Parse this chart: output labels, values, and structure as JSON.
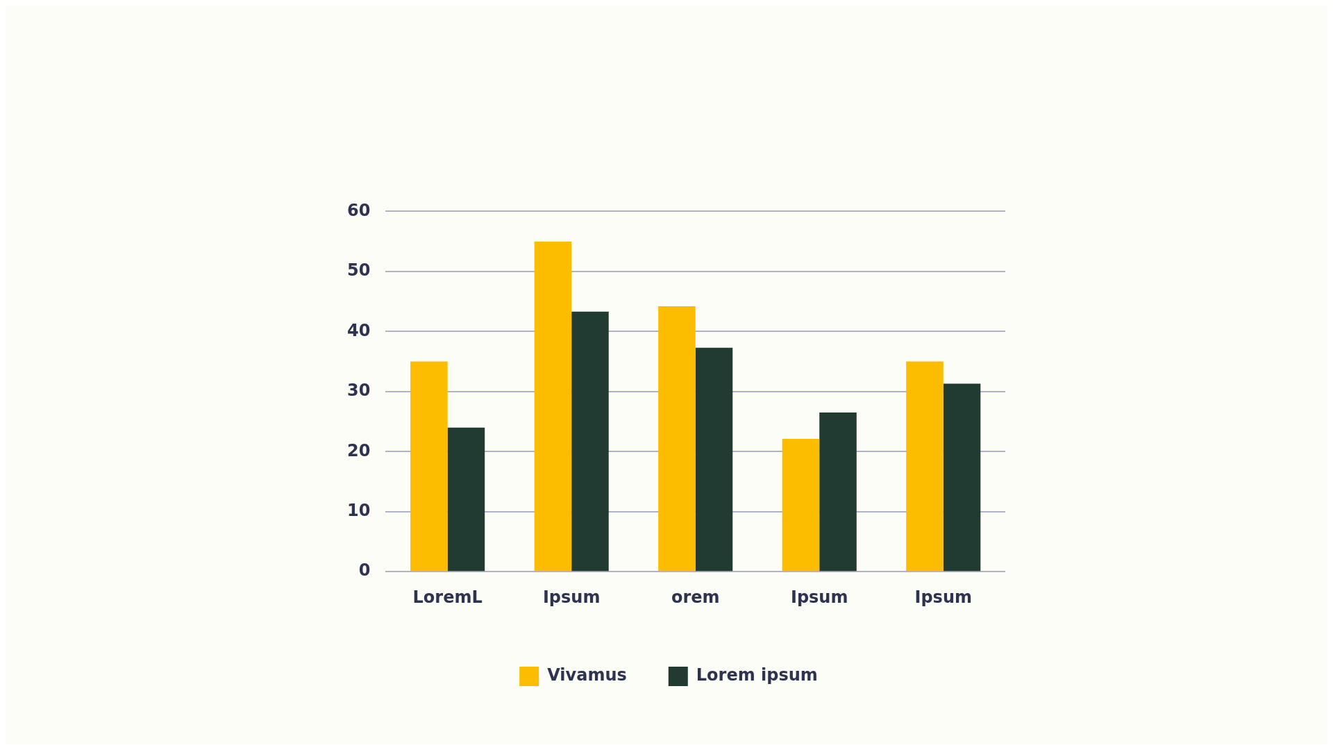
{
  "chart_data": {
    "type": "bar",
    "categories": [
      "LoremL",
      "Ipsum",
      "orem",
      "Ipsum",
      "Ipsum"
    ],
    "series": [
      {
        "name": "Vivamus",
        "color": "#fcbd00",
        "values": [
          35,
          55,
          44.2,
          22.1,
          35
        ]
      },
      {
        "name": "Lorem ipsum",
        "color": "#213a32",
        "values": [
          24,
          43.3,
          37.3,
          26.5,
          31.3
        ]
      }
    ],
    "ylim": [
      0,
      60
    ],
    "yticks": [
      0,
      10,
      20,
      30,
      40,
      50,
      60
    ],
    "grid": "y",
    "legend": "bottom"
  }
}
